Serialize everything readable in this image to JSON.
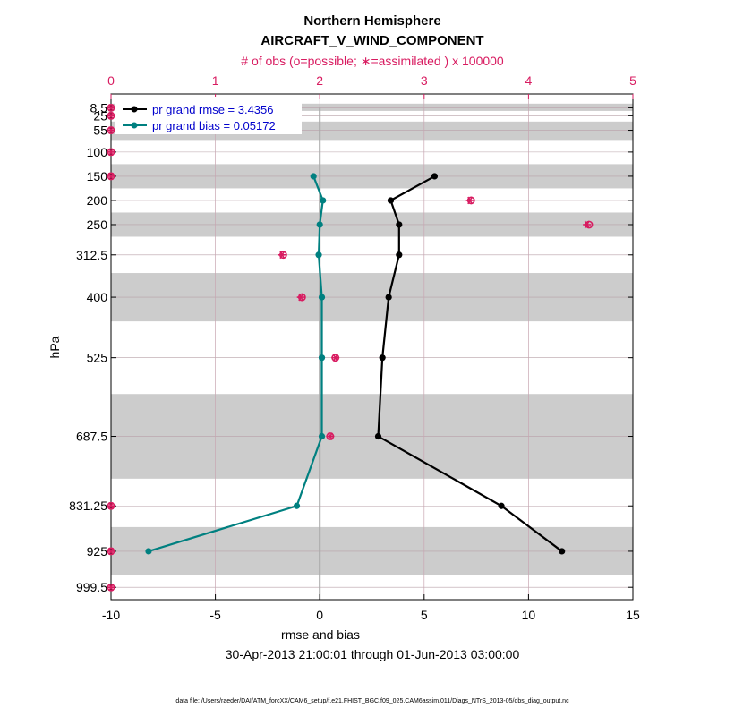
{
  "chart_data": {
    "type": "line",
    "title_line1": "Northern Hemisphere",
    "title_line2": "AIRCRAFT_V_WIND_COMPONENT",
    "top_axis_label": "# of obs (o=possible; ∗=assimilated ) x 100000",
    "top_axis_ticks": [
      "0",
      "1",
      "2",
      "3",
      "4",
      "5"
    ],
    "top_axis_range": [
      0,
      5
    ],
    "xlabel": "rmse and bias",
    "x_ticks": [
      "-10",
      "-5",
      "0",
      "5",
      "10",
      "15"
    ],
    "x_tick_values": [
      -10,
      -5,
      0,
      5,
      10,
      15
    ],
    "xlim": [
      -10,
      15
    ],
    "ylabel": "hPa",
    "y_levels": [
      8.5,
      25,
      55,
      100,
      150,
      200,
      250,
      312.5,
      400,
      525,
      687.5,
      831.25,
      925,
      999.5
    ],
    "y_tick_labels": [
      "8.5",
      "25",
      "55",
      "100",
      "150",
      "200",
      "250",
      "312.5",
      "400",
      "525",
      "687.5",
      "831.25",
      "925",
      "999.5"
    ],
    "date_range": "30-Apr-2013 21:00:01 through 01-Jun-2013 03:00:00",
    "footer": "data file: /Users/raeder/DAI/ATM_forcXX/CAM6_setup/f.e21.FHIST_BGC.f09_025.CAM6assim.011/Diags_NTrS_2013-05/obs_diag_output.nc",
    "legend_position": "top-left",
    "series": [
      {
        "name": "rmse",
        "label": "pr grand rmse = 3.4356",
        "color": "#000000",
        "levels": [
          150,
          200,
          250,
          312.5,
          400,
          525,
          687.5,
          831.25,
          925
        ],
        "values": [
          5.5,
          3.4,
          3.8,
          3.8,
          3.3,
          3.0,
          2.8,
          8.7,
          11.6
        ]
      },
      {
        "name": "bias",
        "label": "pr grand bias = 0.05172",
        "color": "#008080",
        "levels": [
          150,
          200,
          250,
          312.5,
          400,
          525,
          687.5,
          831.25,
          925
        ],
        "values": [
          -0.3,
          0.15,
          0.0,
          -0.05,
          0.1,
          0.1,
          0.1,
          -1.1,
          -8.2
        ]
      }
    ],
    "obs_counts": {
      "color": "#d81b60",
      "levels": [
        8.5,
        25,
        55,
        100,
        150,
        200,
        250,
        312.5,
        400,
        525,
        687.5,
        831.25,
        925,
        999.5
      ],
      "possible": [
        0,
        0,
        0,
        0,
        0,
        3.45,
        4.58,
        1.65,
        1.83,
        2.15,
        2.1,
        0,
        0,
        0
      ],
      "assimilated": [
        0,
        0,
        0,
        0,
        0,
        3.44,
        4.56,
        1.64,
        1.82,
        2.15,
        2.1,
        0,
        0,
        0
      ]
    },
    "shaded_layers": [
      [
        0,
        15
      ],
      [
        37,
        75
      ],
      [
        125,
        175
      ],
      [
        225,
        275
      ],
      [
        350,
        450
      ],
      [
        600,
        775
      ],
      [
        875,
        975
      ]
    ]
  }
}
